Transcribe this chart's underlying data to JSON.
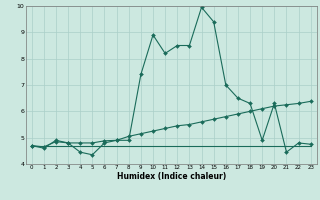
{
  "title": "",
  "xlabel": "Humidex (Indice chaleur)",
  "bg_color": "#cce8e0",
  "line_color": "#1a6b5a",
  "grid_color": "#aacfc8",
  "xlim": [
    -0.5,
    23.5
  ],
  "ylim": [
    4,
    10
  ],
  "xticks": [
    0,
    1,
    2,
    3,
    4,
    5,
    6,
    7,
    8,
    9,
    10,
    11,
    12,
    13,
    14,
    15,
    16,
    17,
    18,
    19,
    20,
    21,
    22,
    23
  ],
  "yticks": [
    4,
    5,
    6,
    7,
    8,
    9,
    10
  ],
  "line1_x": [
    0,
    1,
    2,
    3,
    4,
    5,
    6,
    7,
    8,
    9,
    10,
    11,
    12,
    13,
    14,
    15,
    16,
    17,
    18,
    19,
    20,
    21,
    22,
    23
  ],
  "line1_y": [
    4.7,
    4.6,
    4.9,
    4.8,
    4.45,
    4.35,
    4.8,
    4.9,
    4.9,
    7.4,
    8.9,
    8.2,
    8.5,
    8.5,
    9.95,
    9.4,
    7.0,
    6.5,
    6.3,
    4.9,
    6.3,
    4.45,
    4.8,
    4.75
  ],
  "line2_x": [
    0,
    1,
    2,
    3,
    4,
    5,
    6,
    7,
    8,
    9,
    10,
    11,
    12,
    13,
    14,
    15,
    16,
    17,
    18,
    19,
    20,
    21,
    22,
    23
  ],
  "line2_y": [
    4.7,
    4.65,
    4.85,
    4.8,
    4.8,
    4.8,
    4.88,
    4.9,
    5.05,
    5.15,
    5.25,
    5.35,
    5.45,
    5.5,
    5.6,
    5.7,
    5.8,
    5.9,
    6.0,
    6.1,
    6.2,
    6.25,
    6.3,
    6.38
  ],
  "line3_x": [
    0,
    23
  ],
  "line3_y": [
    4.7,
    4.7
  ]
}
